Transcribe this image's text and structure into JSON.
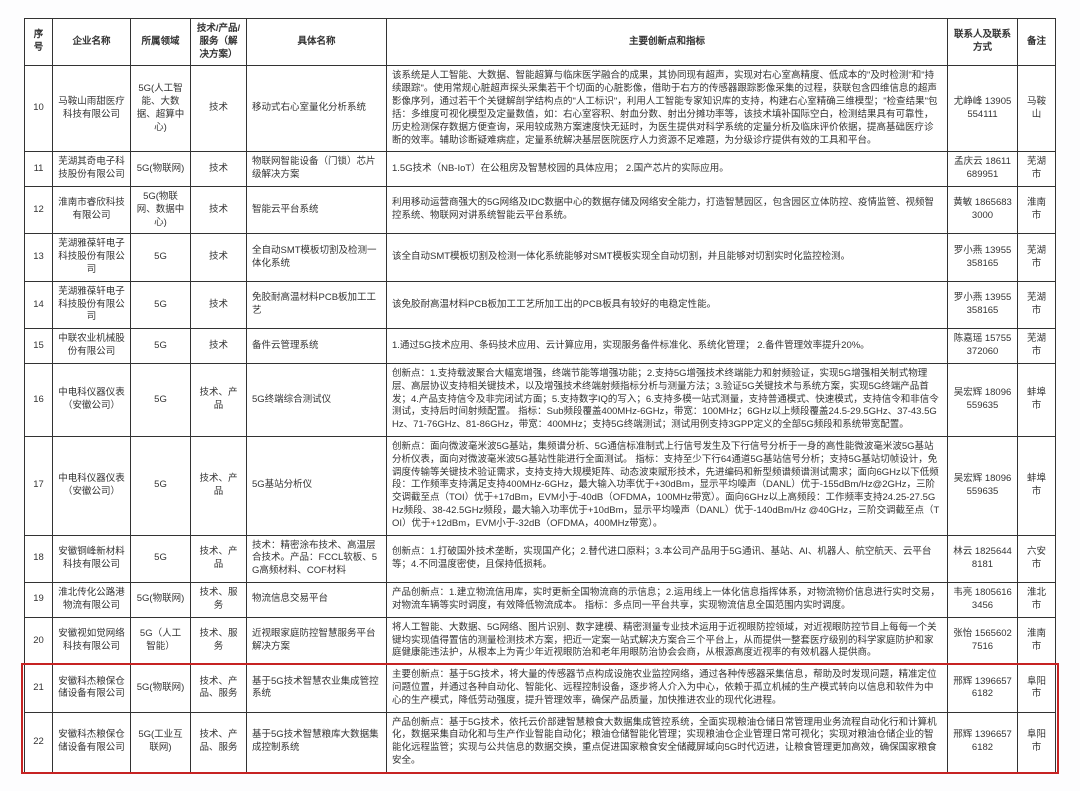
{
  "headers": {
    "c1": "序号",
    "c2": "企业名称",
    "c3": "所属领域",
    "c4": "技术/产品/服务（解决方案）",
    "c5": "具体名称",
    "c6": "主要创新点和指标",
    "c7": "联系人及联系方式",
    "c8": "备注"
  },
  "rows": [
    {
      "n": "10",
      "company": "马鞍山雨甜医疗科技有限公司",
      "field": "5G(人工智能、大数据、超算中心)",
      "type": "技术",
      "name": "移动式右心室量化分析系统",
      "detail": "该系统是人工智能、大数据、智能超算与临床医学融合的成果，其协同现有超声，实现对右心室高精度、低成本的\"及时检测\"和\"持续跟踪\"。使用常规心脏超声探头采集若干个切面的心脏影像，借助于右方的传感器跟踪影像采集的过程，获联包含四维信息的超声影像序列，通过若干个关键解剖学结构点的\"人工标识\"，利用人工智能专家知识库的支持，构建右心室精确三维模型；\"检查结果\"包括：多维度可视化模型及定量数值，如：右心室容积、射血分数、射出分摊功率等，该技术填补国际空白，检测结果具有可靠性，历史检测保存数据方便查询，采用较成熟方案速度快无延时，为医生提供对科学系统的定量分析及临床评价依据，提高基础医疗诊断的效率。辅助诊断疑难病症，定量系统解决基层医院医疗人力资源不足难题，为分级诊疗提供有效的工具和平台。",
      "contact": "尤峥峰 13905554111",
      "note": "马鞍山"
    },
    {
      "n": "11",
      "company": "芜湖其奇电子科技股份有限公司",
      "field": "5G(物联网)",
      "type": "技术",
      "name": "物联网智能设备（门锁）芯片级解决方案",
      "detail": "1.5G技术（NB-IoT）在公租房及智慧校园的具体应用；\n2.国产芯片的实际应用。",
      "contact": "孟庆云 18611689951",
      "note": "芜湖市"
    },
    {
      "n": "12",
      "company": "淮南市睿欣科技有限公司",
      "field": "5G(物联网、数据中心)",
      "type": "技术",
      "name": "智能云平台系统",
      "detail": "利用移动运营商强大的5G网络及IDC数据中心的数据存储及网络安全能力，打造智慧园区，包含园区立体防控、疫情监管、视频智控系统、物联网对讲系统智能云平台系统。",
      "contact": "黄敏 18656833000",
      "note": "淮南市"
    },
    {
      "n": "13",
      "company": "芜湖雅葆轩电子科技股份有限公司",
      "field": "5G",
      "type": "技术",
      "name": "全自动SMT模板切割及检测一体化系统",
      "detail": "该全自动SMT模板切割及检测一体化系统能够对SMT模板实现全自动切割，并且能够对切割实时化监控检测。",
      "contact": "罗小燕 13955358165",
      "note": "芜湖市"
    },
    {
      "n": "14",
      "company": "芜湖雅葆轩电子科技股份有限公司",
      "field": "5G",
      "type": "技术",
      "name": "免胶耐高温材料PCB板加工工艺",
      "detail": "该免胶耐高温材料PCB板加工工艺所加工出的PCB板具有较好的电稳定性能。",
      "contact": "罗小燕 13955358165",
      "note": "芜湖市"
    },
    {
      "n": "15",
      "company": "中联农业机械股份有限公司",
      "field": "5G",
      "type": "技术",
      "name": "备件云管理系统",
      "detail": "1.通过5G技术应用、条码技术应用、云计算应用，实现服务备件标准化、系统化管理；\n2.备件管理效率提升20%。",
      "contact": "陈嘉瑶 15755372060",
      "note": "芜湖市"
    },
    {
      "n": "16",
      "company": "中电科仪器仪表（安徽公司）",
      "field": "5G",
      "type": "技术、产品",
      "name": "5G终端综合测试仪",
      "detail": "创新点：1.支持载波聚合大幅宽增强，终端节能等增强功能；2.支持5G增强技术终端能力和射频验证，实现5G增强相关制式物理层、高层协议支持相关键技术，以及增强技术终端射频指标分析与测量方法；3.验证5G关键技术与系统方案，实现5G终端产品首发；4.产品支持信令及非完闭试方面；5.支持数字IQ的写入；6.支持多模一站式测量，支持普通模式、快速模式，支持信令和非信令测试，支持后时间射频配置。\n指标：Sub频段覆盖400MHz-6GHz，带宽：100MHz；6GHz以上频段覆盖24.5-29.5GHz、37-43.5GHz、71-76GHz、81-86GHz，带宽：400MHz；支持5G终端测试；测试用例支持3GPP定义的全部5G频段和系统带宽配置。",
      "contact": "吴宏辉 18096559635",
      "note": "蚌埠市"
    },
    {
      "n": "17",
      "company": "中电科仪器仪表（安徽公司）",
      "field": "5G",
      "type": "技术、产品",
      "name": "5G基站分析仪",
      "detail": "创新点：面向微波毫米波5G基站，集频谱分析、5G通信标准制式上行信号发生及下行信号分析于一身的高性能微波毫米波5G基站分析仪表，面向对微波毫米波5G基站性能进行全面测试。\n指标：支持至少下行64通道5G基站信号分析；支持5G基站切帧设计，免调度传输等关键技术验证需求，支持支持大规模矩阵、动态波束赋形技术，先进编码和新型频谱频谱测试需求；面向6GHz以下低频段：工作频率支持满足支持400MHz-6GHz，最大输入功率优于+30dBm，显示平均噪声（DANL）优于-155dBm/Hz@2GHz，三阶交调截至点（TOI）优于+17dBm，EVM小于-40dB（OFDMA，100MHz带宽）。面向6GHz以上高频段：工作频率支持24.25-27.5GHz频段、38-42.5GHz频段，最大输入功率优于+10dBm，显示平均噪声（DANL）优于-140dBm/Hz @40GHz，三阶交调截至点（TOI）优于+12dBm，EVM小于-32dB（OFDMA，400MHz带宽）。",
      "contact": "吴宏辉 18096559635",
      "note": "蚌埠市"
    },
    {
      "n": "18",
      "company": "安徽铜峰新材料科技有限公司",
      "field": "5G",
      "type": "技术、产品",
      "name": "技术：精密涂布技术、高温层合技术。产品：FCCL软板、5G高频材料、COF材料",
      "detail": "创新点：1.打破国外技术垄断，实现国产化；2.替代进口原料；3.本公司产品用于5G通讯、基站、AI、机器人、航空航天、云平台等；4.不同温度密使，且保持低损耗。",
      "contact": "林云 18256448181",
      "note": "六安市"
    },
    {
      "n": "19",
      "company": "淮北传化公路港物流有限公司",
      "field": "5G(物联网)",
      "type": "技术、服务",
      "name": "物流信息交易平台",
      "detail": "产品创新点：1.建立物流信用库，实时更新全国物流商的示信息；2.运用线上一体化信息指挥体系，对物流物价信息进行实时交易，对物流车辆等实时调度，有效降低物流成本。\n指标：多点同一平台共享，实现物流信息全国范围内实时调度。",
      "contact": "韦亮 18056163456",
      "note": "淮北市"
    },
    {
      "n": "20",
      "company": "安徽视如觉网络科技有限公司",
      "field": "5G（人工智能）",
      "type": "技术、服务",
      "name": "近视眼家庭防控智慧服务平台解决方案",
      "detail": "将人工智能、大数据、5G网络、图片识别、数字建模、精密测量专业技术运用于近视眼防控领域，对近视眼防控节目上每每一个关键均实现值得置信的测量检测技术方案，把近一定案一站式解决方案合三个平台上，从而提供一整套医疗级别的科学家庭防护和家庭健康能违法护，从根本上为青少年近视眼防治和老年用眼防治协会会商，从根源高度近视率的有效机器人提供商。",
      "contact": "张怡 15656027516",
      "note": "淮南市"
    },
    {
      "n": "21",
      "company": "安徽科杰粮保仓储设备有限公司",
      "field": "5G(物联网)",
      "type": "技术、产品、服务",
      "name": "基于5G技术智慧农业集成管控系统",
      "detail": "主要创新点：基于5G技术，将大量的传感器节点构成设施农业监控网络，通过各种传感器采集信息，帮助及时发现问题，精准定位问题位置，并通过各种自动化、智能化、远程控制设备，逐步将人介入为中心，依赖于孤立机械的生产模式转向以信息和软件为中心的生产模式，降低劳动强度，提升管理效率，确保产品质量，加快推进农业的现代化进程。",
      "contact": "邢辉 13966576182",
      "note": "阜阳市"
    },
    {
      "n": "22",
      "company": "安徽科杰粮保仓储设备有限公司",
      "field": "5G(工业互联网)",
      "type": "技术、产品、服务",
      "name": "基于5G技术智慧粮库大数据集成控制系统",
      "detail": "产品创新点：基于5G技术，依托云价部建智慧粮食大数据集成管控系统，全面实现粮油仓储日常管理用业务流程自动化行和计算机化，数据采集自动化和与生产作业智能自动化；粮油仓储智能化管理；实现粮油仓企业管理日常可视化；实现对粮油仓储企业的智能化远程监管；实现与公共信息的数据交换，重点促进国家粮食安全储藏屏域向5G时代迈进，让粮食管理更加高效，确保国家粮食安全。",
      "contact": "邢辉 13966576182",
      "note": "阜阳市"
    }
  ],
  "highlight_rows": [
    21,
    22
  ],
  "style": {
    "border_color": "#333333",
    "highlight_color": "#c62323",
    "bg_color": "#ffffff",
    "font_main": 9.5
  }
}
